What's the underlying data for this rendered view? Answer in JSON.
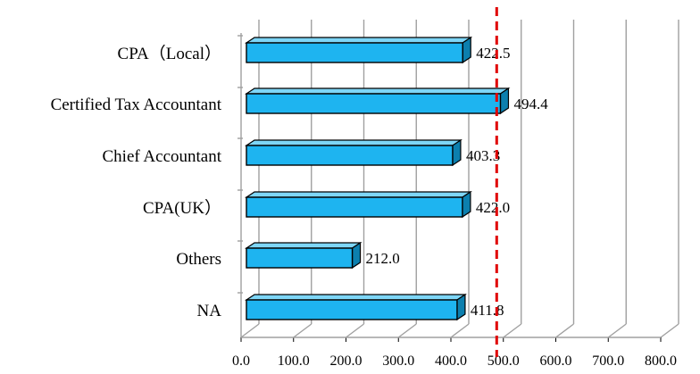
{
  "colors": {
    "bar_front": "#1EB4F0",
    "bar_top": "#7ED6F7",
    "bar_side": "#0C7FAE",
    "bar_outline": "#000000",
    "grid": "#A0A0A0",
    "reference_line": "#E00000"
  },
  "chart_data": {
    "type": "bar",
    "orientation": "horizontal",
    "style": "3d",
    "categories": [
      "CPA（Local）",
      "Certified Tax Accountant",
      "Chief Accountant",
      "CPA(UK）",
      "Others",
      "NA"
    ],
    "values": [
      422.5,
      494.4,
      403.3,
      422.0,
      212.0,
      411.8
    ],
    "data_labels": [
      "422.5",
      "494.4",
      "403.3",
      "422.0",
      "212.0",
      "411.8"
    ],
    "x_ticks": [
      "0.0",
      "100.0",
      "200.0",
      "300.0",
      "400.0",
      "500.0",
      "600.0",
      "700.0",
      "800.0"
    ],
    "xlim": [
      0,
      800
    ],
    "reference_line": {
      "value": 472,
      "style": "dashed"
    },
    "grid": true,
    "legend": "none"
  }
}
